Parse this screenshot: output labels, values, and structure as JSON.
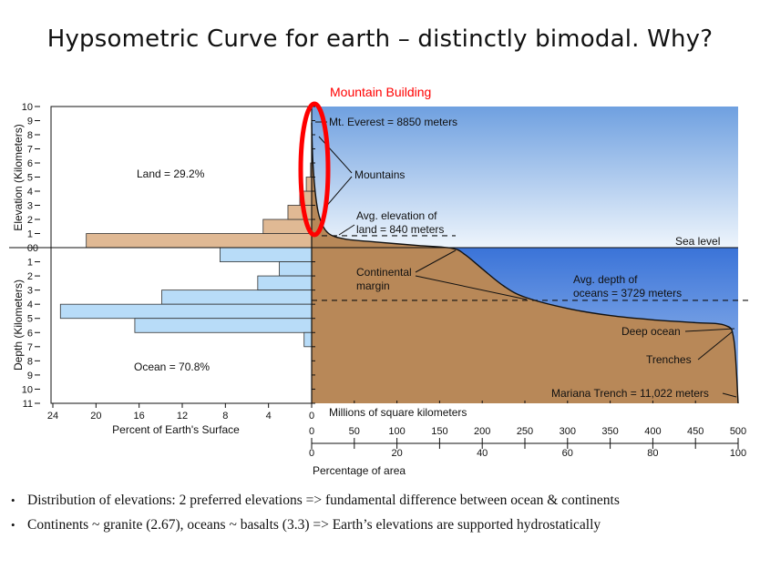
{
  "slide": {
    "title": "Hypsometric Curve for earth – distinctly bimodal. Why?",
    "callout": "Mountain Building",
    "bullets": [
      "Distribution of elevations: 2 preferred elevations => fundamental difference between ocean & continents",
      "Continents ~ granite (2.67), oceans ~ basalts (3.3) => Earth’s elevations are supported hydrostatically"
    ]
  },
  "colors": {
    "land_bar": "#e0b994",
    "ocean_bar": "#b8dcf8",
    "crust": "#b88858",
    "sky_top": "#6fa0e0",
    "sky_bottom": "#eef5fc",
    "ocean_top": "#3a73d8",
    "ocean_bottom": "#a8c6ef",
    "callout": "#ff0000"
  },
  "chart_data": {
    "type": "bar+area",
    "histogram": {
      "xlabel": "Percent of Earth's Surface",
      "x_ticks": [
        24,
        20,
        16,
        12,
        8,
        4,
        0
      ],
      "xlim": [
        25,
        0
      ],
      "land_label": "Land = 29.2%",
      "ocean_label": "Ocean = 70.8%",
      "land_bins": [
        {
          "bin": "0-1 km",
          "percent": 20.9
        },
        {
          "bin": "1-2 km",
          "percent": 4.5
        },
        {
          "bin": "2-3 km",
          "percent": 2.2
        },
        {
          "bin": "3-4 km",
          "percent": 1.1
        },
        {
          "bin": "4-5 km",
          "percent": 0.5
        },
        {
          "bin": "5-6 km",
          "percent": 0.1
        }
      ],
      "ocean_bins": [
        {
          "bin": "0-1 km",
          "percent": 8.5
        },
        {
          "bin": "1-2 km",
          "percent": 3.0
        },
        {
          "bin": "2-3 km",
          "percent": 5.0
        },
        {
          "bin": "3-4 km",
          "percent": 13.9
        },
        {
          "bin": "4-5 km",
          "percent": 23.3
        },
        {
          "bin": "5-6 km",
          "percent": 16.4
        },
        {
          "bin": "6-7 km",
          "percent": 0.7
        }
      ]
    },
    "elevation_axis": {
      "label": "Elevation (Kilometers)",
      "ticks": [
        10,
        9,
        8,
        7,
        6,
        5,
        4,
        3,
        2,
        1,
        0
      ],
      "ylim": [
        0,
        10
      ]
    },
    "depth_axis": {
      "label": "Depth (Kilometers)",
      "ticks": [
        0,
        1,
        2,
        3,
        4,
        5,
        6,
        7,
        8,
        9,
        10,
        11
      ],
      "ylim": [
        0,
        11
      ]
    },
    "hypsometric_curve": {
      "x_label_top": "Millions of square kilometers",
      "x_ticks_area": [
        0,
        50,
        100,
        150,
        200,
        250,
        300,
        350,
        400,
        450,
        500
      ],
      "x_label_bottom": "Percentage of area",
      "x_ticks_percent": [
        0,
        20,
        40,
        60,
        80,
        100
      ],
      "xlim": [
        0,
        100
      ],
      "points": [
        {
          "percent": 0.0,
          "elevation_km": 8.85
        },
        {
          "percent": 0.3,
          "elevation_km": 6.0
        },
        {
          "percent": 1.0,
          "elevation_km": 3.5
        },
        {
          "percent": 2.0,
          "elevation_km": 2.0
        },
        {
          "percent": 4.0,
          "elevation_km": 1.0
        },
        {
          "percent": 8.0,
          "elevation_km": 0.6
        },
        {
          "percent": 15.0,
          "elevation_km": 0.4
        },
        {
          "percent": 25.0,
          "elevation_km": 0.15
        },
        {
          "percent": 33.0,
          "elevation_km": -0.05
        },
        {
          "percent": 36.0,
          "elevation_km": -0.5
        },
        {
          "percent": 40.0,
          "elevation_km": -1.5
        },
        {
          "percent": 45.0,
          "elevation_km": -2.7
        },
        {
          "percent": 50.0,
          "elevation_km": -3.5
        },
        {
          "percent": 60.0,
          "elevation_km": -4.3
        },
        {
          "percent": 70.0,
          "elevation_km": -4.8
        },
        {
          "percent": 80.0,
          "elevation_km": -5.1
        },
        {
          "percent": 90.0,
          "elevation_km": -5.3
        },
        {
          "percent": 97.0,
          "elevation_km": -5.5
        },
        {
          "percent": 99.0,
          "elevation_km": -6.5
        },
        {
          "percent": 100.0,
          "elevation_km": -11.0
        }
      ],
      "reference_lines": [
        {
          "name": "avg-land-elevation",
          "elevation_km": 0.84
        },
        {
          "name": "avg-ocean-depth",
          "elevation_km": -3.729
        }
      ],
      "annotations": {
        "everest": "Mt. Everest = 8850 meters",
        "mountains": "Mountains",
        "avg_land_line1": "Avg. elevation of",
        "avg_land_line2": "land = 840 meters",
        "sea_level": "Sea level",
        "continental_margin_line1": "Continental",
        "continental_margin_line2": "margin",
        "avg_ocean_line1": "Avg. depth of",
        "avg_ocean_line2": "oceans = 3729 meters",
        "deep_ocean": "Deep ocean",
        "trenches": "Trenches",
        "mariana": "Mariana Trench = 11,022 meters"
      }
    }
  }
}
